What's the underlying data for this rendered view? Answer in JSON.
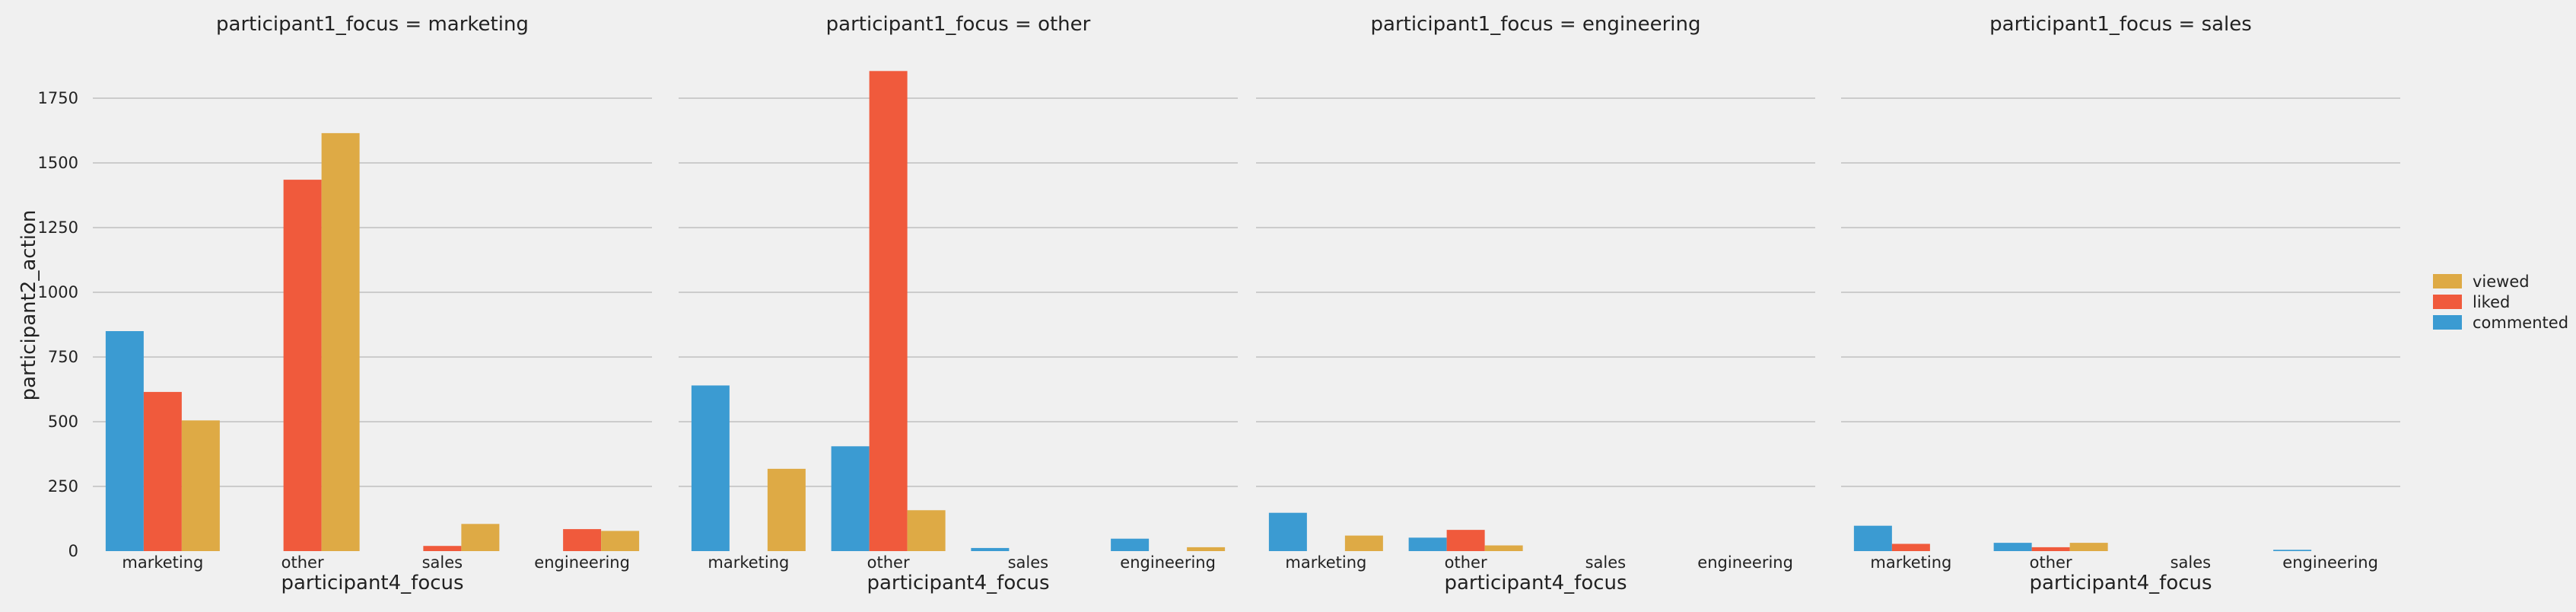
{
  "chart_data": {
    "type": "bar",
    "facet_titles": [
      "participant1_focus = marketing",
      "participant1_focus = other",
      "participant1_focus = engineering",
      "participant1_focus = sales"
    ],
    "categories": [
      "marketing",
      "other",
      "sales",
      "engineering"
    ],
    "xlabel": "participant4_focus",
    "ylabel": "participant2_action",
    "yticks": [
      "0",
      "250",
      "500",
      "750",
      "1000",
      "1250",
      "1500",
      "1750"
    ],
    "ylim": [
      0,
      1900
    ],
    "grid": true,
    "legend_position": "right",
    "legend": [
      "viewed",
      "liked",
      "commented"
    ],
    "colors": {
      "commented": "#3b9bd2",
      "liked": "#f05a3c",
      "viewed": "#deaa45",
      "background": "#f0f0f0",
      "grid": "#cccccc"
    },
    "facets": [
      {
        "series": [
          {
            "name": "commented",
            "values": [
              850,
              0,
              0,
              0
            ]
          },
          {
            "name": "liked",
            "values": [
              615,
              1435,
              20,
              85
            ]
          },
          {
            "name": "viewed",
            "values": [
              505,
              1615,
              105,
              78
            ]
          }
        ]
      },
      {
        "series": [
          {
            "name": "commented",
            "values": [
              640,
              405,
              12,
              48
            ]
          },
          {
            "name": "liked",
            "values": [
              0,
              1855,
              0,
              0
            ]
          },
          {
            "name": "viewed",
            "values": [
              318,
              158,
              0,
              15
            ]
          }
        ]
      },
      {
        "series": [
          {
            "name": "commented",
            "values": [
              148,
              52,
              0,
              0
            ]
          },
          {
            "name": "liked",
            "values": [
              0,
              82,
              0,
              0
            ]
          },
          {
            "name": "viewed",
            "values": [
              60,
              22,
              0,
              0
            ]
          }
        ]
      },
      {
        "series": [
          {
            "name": "commented",
            "values": [
              98,
              32,
              0,
              5
            ]
          },
          {
            "name": "liked",
            "values": [
              28,
              15,
              0,
              0
            ]
          },
          {
            "name": "viewed",
            "values": [
              0,
              32,
              0,
              0
            ]
          }
        ]
      }
    ]
  }
}
